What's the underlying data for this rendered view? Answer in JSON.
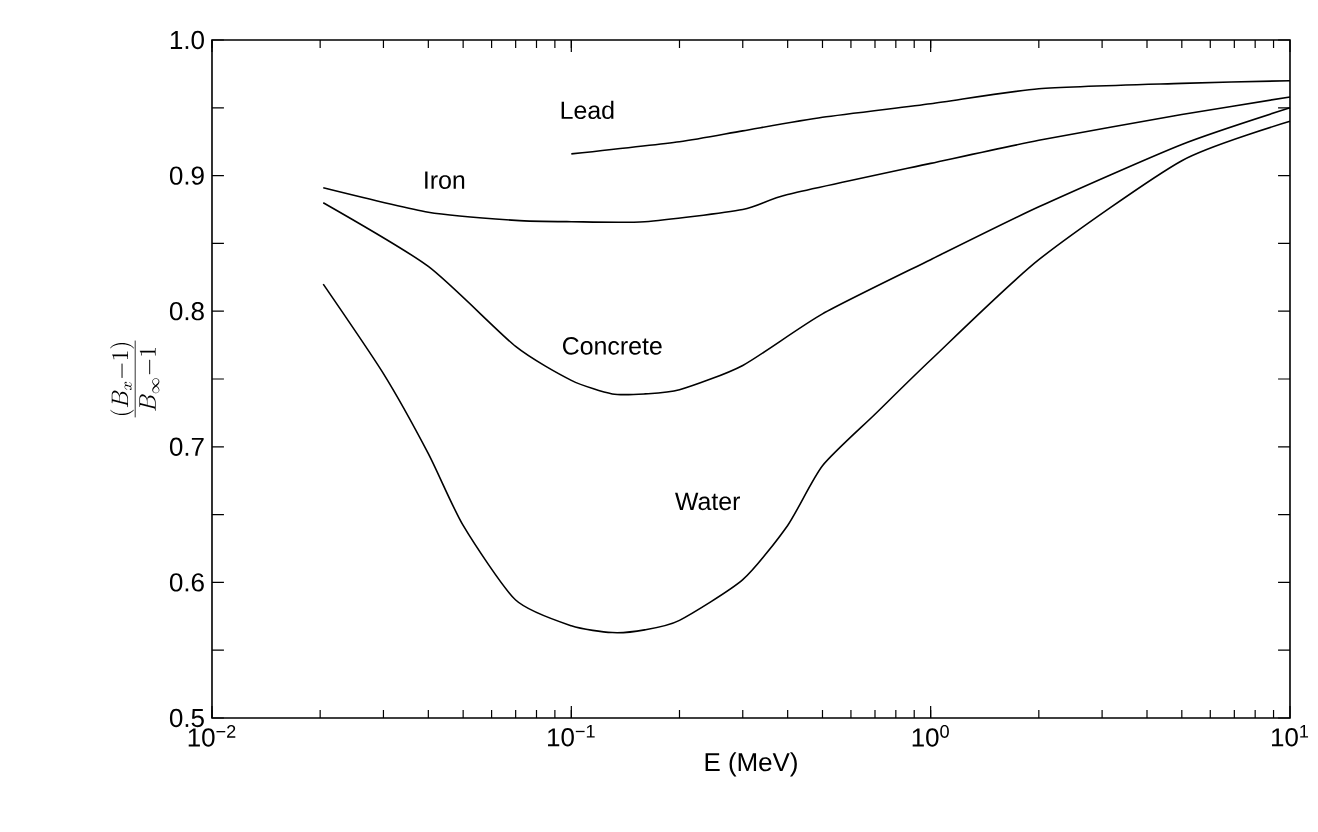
{
  "chart_data": {
    "type": "line",
    "xlabel": "E (MeV)",
    "ylabel": "\\frac{(B_x-1)}{B_\\infty-1}",
    "log": "x",
    "xlim": [
      0.01,
      10
    ],
    "ylim": [
      0.5,
      1.0
    ],
    "xticks": [
      {
        "value": 0.01,
        "label": "10$^{−2}$"
      },
      {
        "value": 0.1,
        "label": "10$^{−1}$"
      },
      {
        "value": 1,
        "label": "10$^{0}$"
      },
      {
        "value": 10,
        "label": "10$^{1}$"
      }
    ],
    "yticks": [
      {
        "value": 0.5,
        "label": "0.5"
      },
      {
        "value": 0.55,
        "label": null
      },
      {
        "value": 0.6,
        "label": "0.6"
      },
      {
        "value": 0.65,
        "label": null
      },
      {
        "value": 0.7,
        "label": "0.7"
      },
      {
        "value": 0.75,
        "label": null
      },
      {
        "value": 0.8,
        "label": "0.8"
      },
      {
        "value": 0.85,
        "label": null
      },
      {
        "value": 0.9,
        "label": "0.9"
      },
      {
        "value": 0.95,
        "label": null
      },
      {
        "value": 1.0,
        "label": "1.0"
      }
    ],
    "line_style": "solid",
    "series": [
      {
        "name": "Lead",
        "color": "#000000",
        "x": [
          0.1,
          0.2,
          0.3,
          0.5,
          1,
          2,
          5,
          10
        ],
        "values": [
          0.916,
          0.925,
          0.933,
          0.943,
          0.953,
          0.964,
          0.968,
          0.97
        ]
      },
      {
        "name": "Iron",
        "color": "#000000",
        "x": [
          0.0204,
          0.04,
          0.07,
          0.1,
          0.16,
          0.3,
          0.4,
          1,
          2,
          5,
          10
        ],
        "values": [
          0.891,
          0.873,
          0.867,
          0.866,
          0.866,
          0.875,
          0.886,
          0.909,
          0.926,
          0.945,
          0.958
        ]
      },
      {
        "name": "Concrete",
        "color": "#000000",
        "x": [
          0.0204,
          0.04,
          0.07,
          0.1,
          0.13,
          0.16,
          0.2,
          0.3,
          0.5,
          1,
          2,
          5,
          10
        ],
        "values": [
          0.88,
          0.833,
          0.774,
          0.749,
          0.739,
          0.739,
          0.742,
          0.76,
          0.798,
          0.838,
          0.877,
          0.923,
          0.95
        ]
      },
      {
        "name": "Water",
        "color": "#000000",
        "x": [
          0.0204,
          0.03,
          0.04,
          0.05,
          0.07,
          0.1,
          0.13,
          0.16,
          0.2,
          0.3,
          0.4,
          0.5,
          0.7,
          1,
          2,
          5,
          10
        ],
        "values": [
          0.82,
          0.754,
          0.695,
          0.642,
          0.587,
          0.568,
          0.563,
          0.565,
          0.572,
          0.602,
          0.642,
          0.686,
          0.724,
          0.764,
          0.838,
          0.911,
          0.94
        ]
      }
    ]
  }
}
